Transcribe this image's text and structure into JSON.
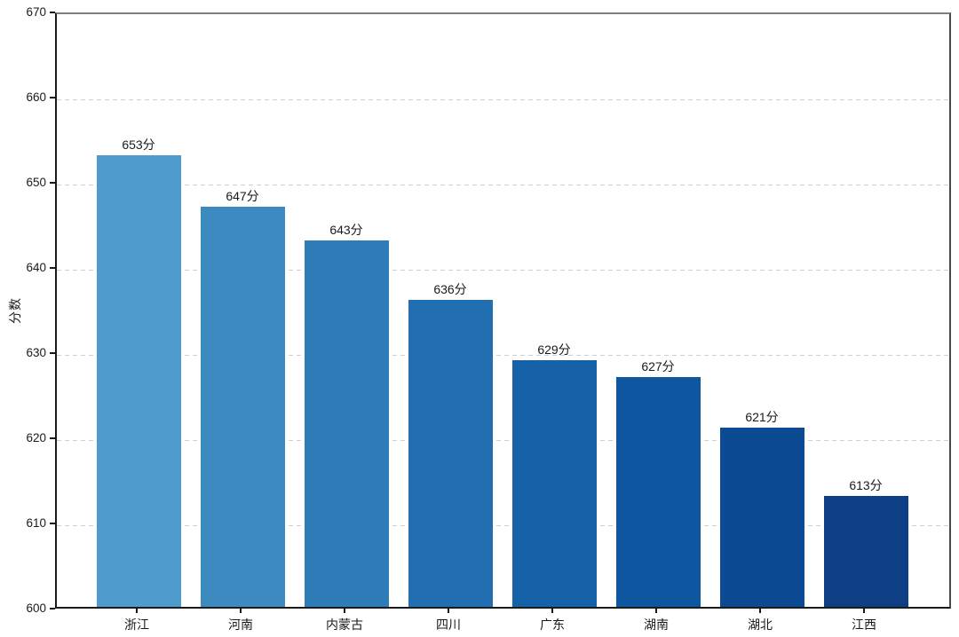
{
  "chart_data": {
    "type": "bar",
    "title": "",
    "xlabel": "",
    "ylabel": "分数",
    "categories": [
      "浙江",
      "河南",
      "内蒙古",
      "四川",
      "广东",
      "湖南",
      "湖北",
      "江西"
    ],
    "values": [
      653,
      647,
      643,
      636,
      629,
      627,
      621,
      613
    ],
    "value_labels": [
      "653分",
      "647分",
      "643分",
      "636分",
      "629分",
      "627分",
      "621分",
      "613分"
    ],
    "bar_colors": [
      "#4f9bcd",
      "#3d8ac1",
      "#2e7cb8",
      "#216eb0",
      "#1562a8",
      "#0f56a0",
      "#0c4a94",
      "#0e3e84"
    ],
    "ylim": [
      600,
      670
    ],
    "yticks": [
      600,
      610,
      620,
      630,
      640,
      650,
      660,
      670
    ],
    "grid": "horizontal-dashed",
    "grid_color": "#cfcfcf",
    "axis_color": "#1a1a1a",
    "legend": "none",
    "value_label_suffix": "分"
  }
}
